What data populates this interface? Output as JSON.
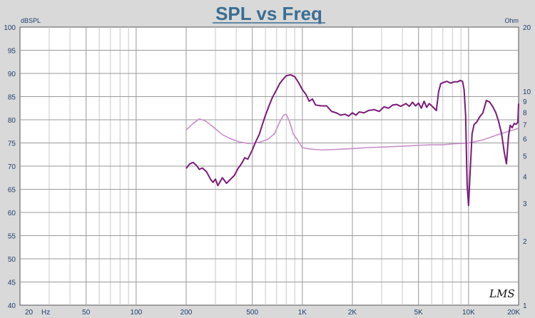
{
  "chart_data": {
    "type": "line",
    "title": "SPL vs Freq",
    "left_unit": "dBSPL",
    "right_unit": "Ohm",
    "logo": "LMS",
    "x_scale": "log",
    "xlim": [
      20,
      20000
    ],
    "ylim_left": [
      40,
      100
    ],
    "ylim_right": [
      0,
      20
    ],
    "grid": true,
    "x_ticks": [
      {
        "value": 20,
        "label": "20"
      },
      {
        "value": 50,
        "label": "50"
      },
      {
        "value": 100,
        "label": "100"
      },
      {
        "value": 200,
        "label": "200"
      },
      {
        "value": 500,
        "label": "500"
      },
      {
        "value": 1000,
        "label": "1K"
      },
      {
        "value": 2000,
        "label": "2K"
      },
      {
        "value": 5000,
        "label": "5K"
      },
      {
        "value": 10000,
        "label": "10K"
      },
      {
        "value": 20000,
        "label": "20K"
      }
    ],
    "x_unit_label": "Hz",
    "y_ticks_left": [
      "40",
      "45",
      "50",
      "55",
      "60",
      "65",
      "70",
      "75",
      "80",
      "85",
      "90",
      "95",
      "100"
    ],
    "y_ticks_right": [
      "1",
      "2",
      "3",
      "4",
      "5",
      "6",
      "7",
      "8",
      "9",
      "10",
      "20"
    ],
    "series": [
      {
        "color": "#7a1a7a",
        "axis": "left",
        "points": [
          [
            200,
            69.5
          ],
          [
            210,
            70.5
          ],
          [
            220,
            70.8
          ],
          [
            230,
            70.2
          ],
          [
            240,
            69.3
          ],
          [
            250,
            69.6
          ],
          [
            265,
            68.8
          ],
          [
            280,
            67.2
          ],
          [
            290,
            66.5
          ],
          [
            300,
            67.2
          ],
          [
            310,
            65.8
          ],
          [
            330,
            67.5
          ],
          [
            350,
            66.3
          ],
          [
            370,
            67.2
          ],
          [
            390,
            68.0
          ],
          [
            410,
            69.5
          ],
          [
            430,
            70.5
          ],
          [
            450,
            71.8
          ],
          [
            470,
            71.5
          ],
          [
            500,
            73.5
          ],
          [
            520,
            75.0
          ],
          [
            550,
            76.8
          ],
          [
            575,
            79.0
          ],
          [
            600,
            81.0
          ],
          [
            630,
            83.0
          ],
          [
            660,
            84.8
          ],
          [
            700,
            86.5
          ],
          [
            730,
            87.8
          ],
          [
            760,
            88.6
          ],
          [
            800,
            89.5
          ],
          [
            850,
            89.7
          ],
          [
            900,
            89.3
          ],
          [
            950,
            88.0
          ],
          [
            1000,
            86.5
          ],
          [
            1050,
            85.5
          ],
          [
            1100,
            84.0
          ],
          [
            1150,
            84.5
          ],
          [
            1200,
            83.2
          ],
          [
            1300,
            83.0
          ],
          [
            1400,
            83.0
          ],
          [
            1500,
            81.8
          ],
          [
            1600,
            81.5
          ],
          [
            1700,
            81.0
          ],
          [
            1800,
            81.2
          ],
          [
            1900,
            80.8
          ],
          [
            2000,
            81.5
          ],
          [
            2100,
            81.0
          ],
          [
            2200,
            81.7
          ],
          [
            2350,
            81.5
          ],
          [
            2500,
            82.0
          ],
          [
            2700,
            82.2
          ],
          [
            2900,
            81.8
          ],
          [
            3100,
            82.8
          ],
          [
            3300,
            82.5
          ],
          [
            3500,
            83.2
          ],
          [
            3700,
            83.3
          ],
          [
            3900,
            82.9
          ],
          [
            4200,
            83.5
          ],
          [
            4400,
            82.9
          ],
          [
            4600,
            83.8
          ],
          [
            4800,
            83.0
          ],
          [
            5000,
            83.6
          ],
          [
            5200,
            82.5
          ],
          [
            5400,
            84.0
          ],
          [
            5600,
            82.7
          ],
          [
            5800,
            83.5
          ],
          [
            6000,
            83.0
          ],
          [
            6200,
            82.5
          ],
          [
            6400,
            82.0
          ],
          [
            6600,
            86.0
          ],
          [
            6800,
            87.8
          ],
          [
            7000,
            88.0
          ],
          [
            7400,
            88.3
          ],
          [
            7800,
            87.9
          ],
          [
            8200,
            88.2
          ],
          [
            8600,
            88.2
          ],
          [
            8900,
            88.5
          ],
          [
            9200,
            88.3
          ],
          [
            9400,
            86.5
          ],
          [
            9600,
            81.0
          ],
          [
            9800,
            66.0
          ],
          [
            10000,
            61.5
          ],
          [
            10200,
            68.0
          ],
          [
            10500,
            77.0
          ],
          [
            10800,
            79.0
          ],
          [
            11200,
            79.5
          ],
          [
            11600,
            80.5
          ],
          [
            12200,
            81.5
          ],
          [
            12800,
            84.2
          ],
          [
            13400,
            83.8
          ],
          [
            14000,
            82.8
          ],
          [
            14600,
            81.5
          ],
          [
            15200,
            79.5
          ],
          [
            15800,
            77.0
          ],
          [
            16400,
            73.0
          ],
          [
            16900,
            70.5
          ],
          [
            17400,
            76.5
          ],
          [
            17800,
            78.8
          ],
          [
            18300,
            78.3
          ],
          [
            18800,
            79.2
          ],
          [
            19300,
            79.0
          ],
          [
            19800,
            79.5
          ],
          [
            20000,
            83.5
          ]
        ]
      },
      {
        "color": "#c88ec8",
        "axis": "left",
        "points": [
          [
            200,
            77.8
          ],
          [
            220,
            79.2
          ],
          [
            240,
            80.2
          ],
          [
            260,
            79.8
          ],
          [
            290,
            78.5
          ],
          [
            330,
            76.8
          ],
          [
            370,
            75.9
          ],
          [
            420,
            75.2
          ],
          [
            470,
            74.9
          ],
          [
            520,
            75.0
          ],
          [
            560,
            75.2
          ],
          [
            620,
            75.8
          ],
          [
            680,
            77.0
          ],
          [
            730,
            79.5
          ],
          [
            770,
            81.0
          ],
          [
            800,
            81.2
          ],
          [
            840,
            79.5
          ],
          [
            880,
            77.0
          ],
          [
            940,
            75.5
          ],
          [
            1000,
            74.0
          ],
          [
            1100,
            73.7
          ],
          [
            1300,
            73.5
          ],
          [
            1600,
            73.6
          ],
          [
            2000,
            73.8
          ],
          [
            2500,
            74.0
          ],
          [
            3000,
            74.1
          ],
          [
            4000,
            74.3
          ],
          [
            5000,
            74.5
          ],
          [
            6000,
            74.6
          ],
          [
            7000,
            74.6
          ],
          [
            8000,
            74.8
          ],
          [
            9000,
            74.9
          ],
          [
            10000,
            75.0
          ],
          [
            11000,
            75.3
          ],
          [
            12000,
            75.6
          ],
          [
            13000,
            76.0
          ],
          [
            14000,
            76.4
          ],
          [
            15000,
            76.8
          ],
          [
            16000,
            77.1
          ],
          [
            17000,
            77.4
          ],
          [
            18000,
            77.7
          ],
          [
            19000,
            77.9
          ],
          [
            20000,
            78.2
          ]
        ]
      }
    ]
  }
}
